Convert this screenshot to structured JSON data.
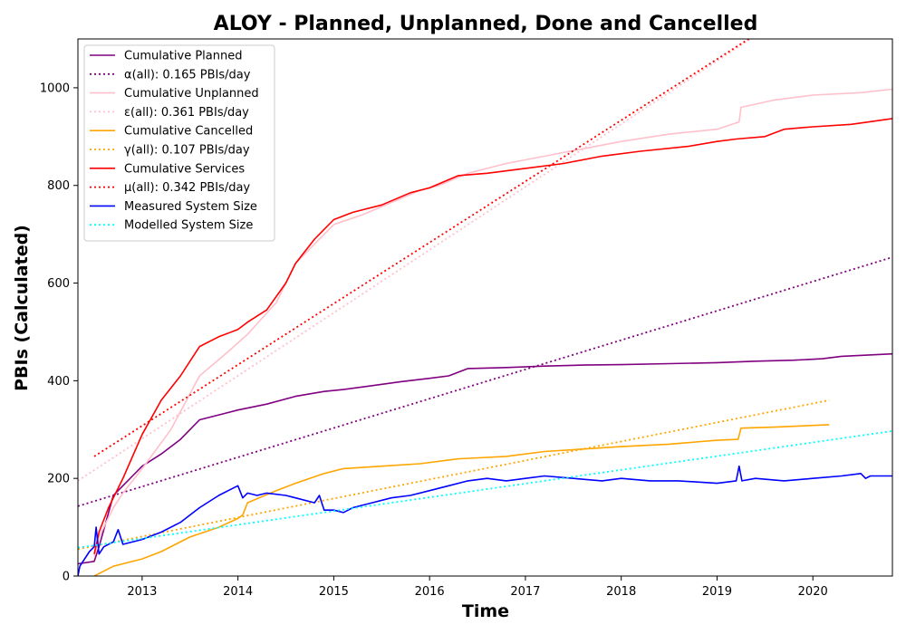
{
  "chart_data": {
    "type": "line",
    "title": "ALOY - Planned, Unplanned, Done  and Cancelled",
    "xlabel": "Time",
    "ylabel": "PBIs (Calculated)",
    "xlim": [
      2012.33,
      2020.83
    ],
    "ylim": [
      0,
      1100
    ],
    "x_ticks": [
      2013,
      2014,
      2015,
      2016,
      2017,
      2018,
      2019,
      2020
    ],
    "x_tick_labels": [
      "2013",
      "2014",
      "2015",
      "2016",
      "2017",
      "2018",
      "2019",
      "2020"
    ],
    "y_ticks": [
      0,
      200,
      400,
      600,
      800,
      1000
    ],
    "y_tick_labels": [
      "0",
      "200",
      "400",
      "600",
      "800",
      "1000"
    ],
    "grid": false,
    "legend_position": "top-left",
    "series": [
      {
        "name": "Cumulative Planned",
        "color": "#800080",
        "style": "solid",
        "x": [
          2012.33,
          2012.5,
          2012.55,
          2012.7,
          2012.9,
          2013.0,
          2013.2,
          2013.4,
          2013.6,
          2013.8,
          2014.0,
          2014.3,
          2014.6,
          2014.9,
          2015.1,
          2015.4,
          2015.7,
          2016.0,
          2016.2,
          2016.4,
          2016.8,
          2017.2,
          2017.6,
          2018.0,
          2018.5,
          2019.0,
          2019.4,
          2019.8,
          2020.1,
          2020.3,
          2020.83
        ],
        "values": [
          25,
          30,
          60,
          165,
          205,
          225,
          250,
          280,
          320,
          330,
          340,
          352,
          368,
          378,
          382,
          390,
          398,
          405,
          410,
          425,
          427,
          430,
          432,
          433,
          435,
          437,
          440,
          442,
          445,
          450,
          455
        ]
      },
      {
        "name": "α(all): 0.165 PBIs/day",
        "color": "#800080",
        "style": "dotted",
        "x": [
          2012.33,
          2020.83
        ],
        "values": [
          143,
          653
        ]
      },
      {
        "name": "Cumulative Unplanned",
        "color": "#ffc0cb",
        "style": "solid",
        "x": [
          2012.5,
          2012.55,
          2012.7,
          2012.8,
          2013.0,
          2013.3,
          2013.6,
          2013.9,
          2014.1,
          2014.4,
          2014.6,
          2014.8,
          2015.0,
          2015.3,
          2015.6,
          2015.9,
          2016.1,
          2016.4,
          2016.8,
          2017.2,
          2017.6,
          2018.0,
          2018.5,
          2019.0,
          2019.23,
          2019.25,
          2019.6,
          2020.0,
          2020.5,
          2020.83
        ],
        "values": [
          40,
          80,
          140,
          170,
          220,
          300,
          410,
          460,
          495,
          560,
          640,
          680,
          720,
          740,
          765,
          790,
          800,
          825,
          845,
          860,
          875,
          890,
          905,
          915,
          930,
          960,
          975,
          985,
          990,
          997
        ]
      },
      {
        "name": "ε(all): 0.361 PBIs/day",
        "color": "#ffc0cb",
        "style": "dotted",
        "x": [
          2012.33,
          2019.35
        ],
        "values": [
          195,
          1100
        ]
      },
      {
        "name": "Cumulative Cancelled",
        "color": "#ffa500",
        "style": "solid",
        "x": [
          2012.5,
          2012.7,
          2013.0,
          2013.2,
          2013.5,
          2013.8,
          2014.0,
          2014.05,
          2014.1,
          2014.4,
          2014.6,
          2014.9,
          2015.1,
          2015.5,
          2015.9,
          2016.3,
          2016.8,
          2017.2,
          2017.6,
          2018.0,
          2018.5,
          2019.0,
          2019.22,
          2019.25,
          2019.6,
          2020.17
        ],
        "values": [
          0,
          20,
          35,
          50,
          80,
          100,
          118,
          125,
          150,
          175,
          190,
          210,
          220,
          225,
          230,
          240,
          245,
          255,
          260,
          265,
          270,
          278,
          280,
          303,
          305,
          310
        ]
      },
      {
        "name": "γ(all): 0.107 PBIs/day",
        "color": "#ffa500",
        "style": "dotted",
        "x": [
          2012.33,
          2020.17
        ],
        "values": [
          55,
          360
        ]
      },
      {
        "name": "Cumulative Services",
        "color": "#ff0000",
        "style": "solid",
        "x": [
          2012.5,
          2012.55,
          2012.65,
          2012.8,
          2013.0,
          2013.2,
          2013.4,
          2013.6,
          2013.8,
          2014.0,
          2014.1,
          2014.3,
          2014.5,
          2014.6,
          2014.8,
          2015.0,
          2015.2,
          2015.5,
          2015.8,
          2016.0,
          2016.3,
          2016.6,
          2017.0,
          2017.4,
          2017.8,
          2018.2,
          2018.7,
          2019.0,
          2019.2,
          2019.5,
          2019.7,
          2020.0,
          2020.4,
          2020.83
        ],
        "values": [
          45,
          90,
          140,
          200,
          290,
          360,
          410,
          470,
          490,
          505,
          520,
          545,
          600,
          640,
          690,
          730,
          745,
          760,
          785,
          795,
          820,
          825,
          835,
          845,
          860,
          870,
          880,
          890,
          895,
          900,
          915,
          920,
          925,
          937
        ]
      },
      {
        "name": "μ(all): 0.342 PBIs/day",
        "color": "#ff0000",
        "style": "dotted",
        "x": [
          2012.5,
          2019.33
        ],
        "values": [
          245,
          1100
        ]
      },
      {
        "name": "Measured System Size",
        "color": "#0000ff",
        "style": "solid",
        "x": [
          2012.33,
          2012.35,
          2012.45,
          2012.5,
          2012.52,
          2012.55,
          2012.6,
          2012.7,
          2012.75,
          2012.8,
          2013.0,
          2013.2,
          2013.4,
          2013.5,
          2013.6,
          2013.8,
          2014.0,
          2014.05,
          2014.1,
          2014.2,
          2014.3,
          2014.5,
          2014.6,
          2014.8,
          2014.85,
          2014.9,
          2015.0,
          2015.1,
          2015.2,
          2015.4,
          2015.6,
          2015.8,
          2016.0,
          2016.2,
          2016.4,
          2016.6,
          2016.8,
          2017.0,
          2017.2,
          2017.5,
          2017.8,
          2018.0,
          2018.3,
          2018.6,
          2019.0,
          2019.2,
          2019.23,
          2019.26,
          2019.4,
          2019.7,
          2020.0,
          2020.3,
          2020.5,
          2020.55,
          2020.6,
          2020.83
        ],
        "values": [
          0,
          20,
          50,
          60,
          100,
          45,
          60,
          70,
          95,
          65,
          75,
          90,
          110,
          125,
          140,
          165,
          185,
          160,
          170,
          165,
          170,
          165,
          160,
          150,
          165,
          135,
          135,
          130,
          140,
          150,
          160,
          165,
          175,
          185,
          195,
          200,
          195,
          200,
          205,
          200,
          195,
          200,
          195,
          195,
          190,
          195,
          225,
          195,
          200,
          195,
          200,
          205,
          210,
          200,
          205,
          205
        ]
      },
      {
        "name": "Modelled System Size",
        "color": "#00ffff",
        "style": "dotted",
        "x": [
          2012.33,
          2020.83
        ],
        "values": [
          58,
          297
        ]
      }
    ]
  }
}
